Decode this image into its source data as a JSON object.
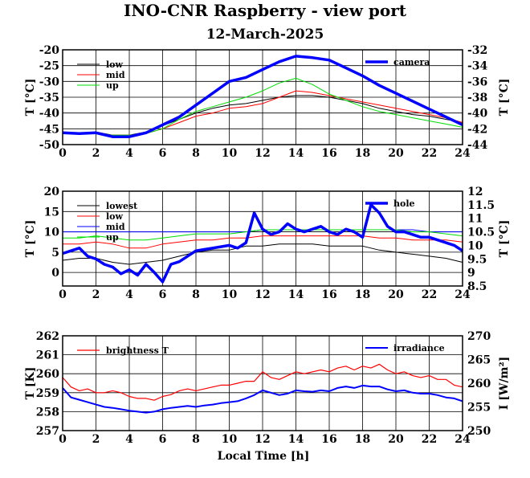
{
  "title": "INO-CNR Raspberry - view port",
  "subtitle": "12-March-2025",
  "xlabel": "Local Time [h]",
  "colors": {
    "black": "#000000",
    "red": "#ff0000",
    "green": "#00dd00",
    "blue": "#0000ff"
  },
  "chart_data": [
    {
      "type": "line",
      "ylabel": "T [°C]",
      "y2label": "T [°C]",
      "xlim": [
        0,
        24
      ],
      "ylim": [
        -50,
        -20
      ],
      "y2lim": [
        -44,
        -32
      ],
      "xticks": [
        0,
        2,
        4,
        6,
        8,
        10,
        12,
        14,
        16,
        18,
        20,
        22,
        24
      ],
      "yticks": [
        -20,
        -25,
        -30,
        -35,
        -40,
        -45,
        -50
      ],
      "y2ticks": [
        -32,
        -34,
        -36,
        -38,
        -40,
        -42,
        -44
      ],
      "grid": true,
      "legend_left": "top-left",
      "legend_right": "top-right",
      "series": [
        {
          "name": "low",
          "color": "#000000",
          "axis": "left",
          "width": 1,
          "x": [
            0,
            1,
            2,
            3,
            4,
            5,
            6,
            7,
            8,
            9,
            10,
            11,
            12,
            13,
            14,
            15,
            16,
            17,
            18,
            19,
            20,
            21,
            22,
            23,
            24
          ],
          "y": [
            -46.5,
            -46.5,
            -46,
            -47,
            -47,
            -46,
            -44,
            -42,
            -40,
            -38.5,
            -37.5,
            -37,
            -36,
            -35,
            -34.5,
            -34.5,
            -35,
            -36,
            -37,
            -38.5,
            -39.5,
            -40.5,
            -41,
            -42,
            -43
          ]
        },
        {
          "name": "mid",
          "color": "#ff0000",
          "axis": "left",
          "width": 1,
          "x": [
            0,
            1,
            2,
            3,
            4,
            5,
            6,
            7,
            8,
            9,
            10,
            11,
            12,
            13,
            14,
            15,
            16,
            17,
            18,
            19,
            20,
            21,
            22,
            23,
            24
          ],
          "y": [
            -46.5,
            -46.5,
            -46.5,
            -47,
            -47,
            -46.5,
            -45,
            -43,
            -41,
            -40,
            -38.5,
            -38,
            -37,
            -35,
            -33,
            -33.5,
            -34.5,
            -35.5,
            -36.5,
            -37.5,
            -38.5,
            -39.5,
            -40.5,
            -41.5,
            -43
          ]
        },
        {
          "name": "up",
          "color": "#00dd00",
          "axis": "left",
          "width": 1,
          "x": [
            0,
            1,
            2,
            3,
            4,
            5,
            6,
            7,
            8,
            9,
            10,
            11,
            12,
            13,
            14,
            15,
            16,
            17,
            18,
            19,
            20,
            21,
            22,
            23,
            24
          ],
          "y": [
            -46.5,
            -46.5,
            -46.5,
            -47,
            -47,
            -46.5,
            -45,
            -42,
            -39.5,
            -38,
            -36.5,
            -35,
            -33,
            -30.5,
            -29,
            -31,
            -34,
            -36,
            -38,
            -39.5,
            -40.5,
            -41.5,
            -42.5,
            -43.5,
            -44.5
          ]
        },
        {
          "name": "camera",
          "color": "#0000ff",
          "axis": "right",
          "width": 3.5,
          "x": [
            0,
            1,
            2,
            3,
            4,
            5,
            6,
            7,
            8,
            9,
            10,
            11,
            12,
            13,
            14,
            15,
            16,
            17,
            18,
            19,
            20,
            21,
            22,
            23,
            24
          ],
          "y": [
            -42.5,
            -42.6,
            -42.5,
            -43,
            -43,
            -42.5,
            -41.5,
            -40.5,
            -39,
            -37.5,
            -36,
            -35.5,
            -34.5,
            -33.5,
            -32.8,
            -33,
            -33.3,
            -34.3,
            -35.3,
            -36.5,
            -37.5,
            -38.5,
            -39.5,
            -40.5,
            -41.5
          ]
        }
      ]
    },
    {
      "type": "line",
      "ylabel": "T [°C]",
      "y2label": "T [°C]",
      "xlim": [
        0,
        24
      ],
      "ylim": [
        -3.33,
        20
      ],
      "y2lim": [
        8.5,
        12
      ],
      "xticks": [
        0,
        2,
        4,
        6,
        8,
        10,
        12,
        14,
        16,
        18,
        20,
        22,
        24
      ],
      "yticks": [
        20,
        15,
        10,
        5,
        0
      ],
      "y2ticks": [
        12,
        11.5,
        11,
        10.5,
        10,
        9.5,
        9,
        8.5
      ],
      "grid": true,
      "legend_left": "top-left",
      "legend_right": "top-right",
      "series": [
        {
          "name": "lowest",
          "color": "#000000",
          "axis": "left",
          "width": 1,
          "x": [
            0,
            1,
            2,
            3,
            4,
            5,
            6,
            7,
            8,
            9,
            10,
            11,
            12,
            13,
            14,
            15,
            16,
            17,
            18,
            19,
            20,
            21,
            22,
            23,
            24
          ],
          "y": [
            3,
            3.5,
            3.5,
            2.5,
            2,
            2.5,
            3,
            4,
            5,
            5.5,
            5.5,
            6.5,
            6.5,
            7,
            7,
            7,
            6.5,
            6.5,
            6.5,
            5.5,
            5,
            4.5,
            4,
            3.5,
            2.5
          ]
        },
        {
          "name": "low",
          "color": "#ff0000",
          "axis": "left",
          "width": 1,
          "x": [
            0,
            1,
            2,
            3,
            4,
            5,
            6,
            7,
            8,
            9,
            10,
            11,
            12,
            13,
            14,
            15,
            16,
            17,
            18,
            19,
            20,
            21,
            22,
            23,
            24
          ],
          "y": [
            7,
            7,
            7.5,
            7,
            6,
            6,
            7,
            7.5,
            8,
            8,
            8.5,
            8.5,
            9,
            9,
            9,
            9,
            9,
            9,
            9,
            8.5,
            8.5,
            8,
            8,
            8,
            7.5
          ]
        },
        {
          "name": "mid",
          "color": "#0000ff",
          "axis": "left",
          "width": 1,
          "x": [
            0,
            1,
            2,
            3,
            4,
            5,
            6,
            7,
            8,
            9,
            10,
            11,
            12,
            13,
            14,
            15,
            16,
            17,
            18,
            19,
            20,
            21,
            22,
            23,
            24
          ],
          "y": [
            10,
            10,
            10,
            10,
            10,
            10,
            10,
            10,
            10,
            10,
            10,
            10,
            10.5,
            10.5,
            10.5,
            10.5,
            10.5,
            10.5,
            10.5,
            10.5,
            10.5,
            10.5,
            10,
            10,
            10
          ]
        },
        {
          "name": "up",
          "color": "#00dd00",
          "axis": "left",
          "width": 1,
          "x": [
            0,
            1,
            2,
            3,
            4,
            5,
            6,
            7,
            8,
            9,
            10,
            11,
            12,
            13,
            14,
            15,
            16,
            17,
            18,
            19,
            20,
            21,
            22,
            23,
            24
          ],
          "y": [
            8.5,
            8.5,
            9,
            8.5,
            8,
            8,
            8.5,
            9,
            9.5,
            9.5,
            9.5,
            10,
            10.5,
            10.5,
            10.5,
            10.5,
            10.5,
            10.5,
            10.5,
            10.5,
            10.5,
            10,
            10,
            9.5,
            9
          ]
        },
        {
          "name": "hole",
          "color": "#0000ff",
          "axis": "right",
          "width": 3.5,
          "x": [
            0,
            0.5,
            1,
            1.5,
            2,
            2.5,
            3,
            3.5,
            4,
            4.5,
            5,
            5.5,
            6,
            6.5,
            7,
            7.5,
            8,
            8.5,
            9,
            9.5,
            10,
            10.5,
            11,
            11.5,
            12,
            12.5,
            13,
            13.5,
            14,
            14.5,
            15,
            15.5,
            16,
            16.5,
            17,
            17.5,
            18,
            18.5,
            19,
            19.5,
            20,
            20.5,
            21,
            21.5,
            22,
            22.5,
            23,
            23.5,
            24
          ],
          "y": [
            9.7,
            9.8,
            9.9,
            9.6,
            9.5,
            9.3,
            9.2,
            8.95,
            9.1,
            8.9,
            9.3,
            9.0,
            8.65,
            9.3,
            9.4,
            9.6,
            9.8,
            9.85,
            9.9,
            9.95,
            10.0,
            9.9,
            10.1,
            11.2,
            10.6,
            10.4,
            10.5,
            10.8,
            10.6,
            10.5,
            10.6,
            10.7,
            10.5,
            10.4,
            10.6,
            10.5,
            10.3,
            11.5,
            11.2,
            10.7,
            10.5,
            10.5,
            10.4,
            10.3,
            10.3,
            10.2,
            10.1,
            10.0,
            9.8
          ]
        }
      ]
    },
    {
      "type": "line",
      "ylabel": "T [K]",
      "y2label": "I [W/m²]",
      "xlim": [
        0,
        24
      ],
      "ylim": [
        257,
        262
      ],
      "y2lim": [
        250,
        270
      ],
      "xticks": [
        0,
        2,
        4,
        6,
        8,
        10,
        12,
        14,
        16,
        18,
        20,
        22,
        24
      ],
      "yticks": [
        262,
        261,
        260,
        259,
        258,
        257
      ],
      "y2ticks": [
        270,
        265,
        260,
        255,
        250
      ],
      "grid": true,
      "legend_left": "top-left",
      "legend_right": "top-right",
      "series": [
        {
          "name": "brightness T",
          "color": "#ff0000",
          "axis": "left",
          "width": 1.2,
          "x": [
            0,
            0.5,
            1,
            1.5,
            2,
            2.5,
            3,
            3.5,
            4,
            4.5,
            5,
            5.5,
            6,
            6.5,
            7,
            7.5,
            8,
            8.5,
            9,
            9.5,
            10,
            10.5,
            11,
            11.5,
            12,
            12.5,
            13,
            13.5,
            14,
            14.5,
            15,
            15.5,
            16,
            16.5,
            17,
            17.5,
            18,
            18.5,
            19,
            19.5,
            20,
            20.5,
            21,
            21.5,
            22,
            22.5,
            23,
            23.5,
            24
          ],
          "y": [
            259.8,
            259.3,
            259.1,
            259.2,
            259.0,
            259.0,
            259.1,
            259.0,
            258.8,
            258.7,
            258.7,
            258.6,
            258.8,
            258.9,
            259.1,
            259.2,
            259.1,
            259.2,
            259.3,
            259.4,
            259.4,
            259.5,
            259.6,
            259.6,
            260.1,
            259.8,
            259.7,
            259.9,
            260.1,
            260.0,
            260.1,
            260.2,
            260.1,
            260.3,
            260.4,
            260.2,
            260.4,
            260.3,
            260.5,
            260.2,
            260.0,
            260.1,
            259.9,
            259.8,
            259.9,
            259.7,
            259.7,
            259.4,
            259.3
          ]
        },
        {
          "name": "irradiance",
          "color": "#0000ff",
          "axis": "right",
          "width": 2,
          "x": [
            0,
            0.5,
            1,
            1.5,
            2,
            2.5,
            3,
            3.5,
            4,
            4.5,
            5,
            5.5,
            6,
            6.5,
            7,
            7.5,
            8,
            8.5,
            9,
            9.5,
            10,
            10.5,
            11,
            11.5,
            12,
            12.5,
            13,
            13.5,
            14,
            14.5,
            15,
            15.5,
            16,
            16.5,
            17,
            17.5,
            18,
            18.5,
            19,
            19.5,
            20,
            20.5,
            21,
            21.5,
            22,
            22.5,
            23,
            23.5,
            24
          ],
          "y": [
            259,
            257,
            256.5,
            256,
            255.5,
            255,
            254.8,
            254.5,
            254.2,
            254,
            253.8,
            254,
            254.5,
            254.8,
            255,
            255.2,
            255,
            255.3,
            255.5,
            255.8,
            256,
            256.2,
            256.8,
            257.5,
            258.5,
            258,
            257.5,
            257.8,
            258.5,
            258.3,
            258.2,
            258.5,
            258.3,
            259,
            259.3,
            259,
            259.5,
            259.3,
            259.3,
            258.7,
            258.3,
            258.5,
            258,
            257.8,
            257.8,
            257.5,
            257,
            256.8,
            256.2
          ]
        }
      ]
    }
  ]
}
